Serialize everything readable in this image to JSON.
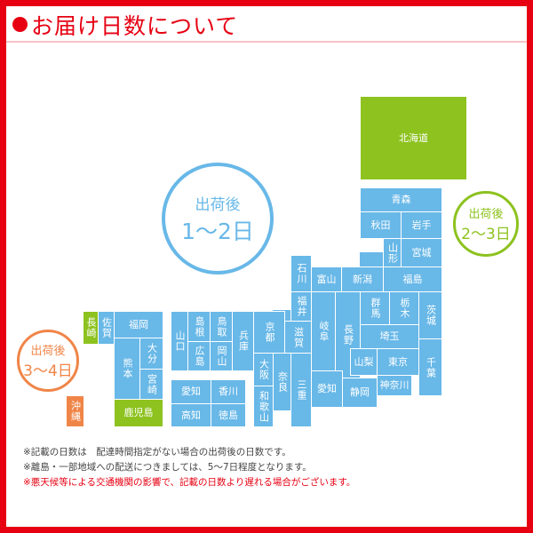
{
  "header": {
    "title": "お届け日数について",
    "bullet_icon": "red-dot"
  },
  "colors": {
    "frame": "#e60012",
    "zone_1_2": "#68b8e8",
    "zone_2_3": "#8dc21f",
    "zone_3_4": "#f08548"
  },
  "legend": {
    "zone_1_2": {
      "line1": "出荷後",
      "line2": "1〜2日"
    },
    "zone_2_3": {
      "line1": "出荷後",
      "line2": "2〜3日"
    },
    "zone_3_4": {
      "line1": "出荷後",
      "line2": "3〜4日"
    }
  },
  "prefectures": [
    {
      "name": "北海道",
      "zone": "2-3"
    },
    {
      "name": "青森",
      "zone": "1-2"
    },
    {
      "name": "秋田",
      "zone": "1-2"
    },
    {
      "name": "岩手",
      "zone": "1-2"
    },
    {
      "name": "山形",
      "zone": "1-2"
    },
    {
      "name": "宮城",
      "zone": "1-2"
    },
    {
      "name": "新潟",
      "zone": "1-2"
    },
    {
      "name": "福島",
      "zone": "1-2"
    },
    {
      "name": "石川",
      "zone": "1-2"
    },
    {
      "name": "富山",
      "zone": "1-2"
    },
    {
      "name": "福井",
      "zone": "1-2"
    },
    {
      "name": "岐阜",
      "zone": "1-2"
    },
    {
      "name": "長野",
      "zone": "1-2"
    },
    {
      "name": "群馬",
      "zone": "1-2"
    },
    {
      "name": "栃木",
      "zone": "1-2"
    },
    {
      "name": "茨城",
      "zone": "1-2"
    },
    {
      "name": "埼玉",
      "zone": "1-2"
    },
    {
      "name": "千葉",
      "zone": "1-2"
    },
    {
      "name": "山梨",
      "zone": "1-2"
    },
    {
      "name": "東京",
      "zone": "1-2"
    },
    {
      "name": "神奈川",
      "zone": "1-2"
    },
    {
      "name": "愛知",
      "zone": "1-2"
    },
    {
      "name": "静岡",
      "zone": "1-2"
    },
    {
      "name": "京都",
      "zone": "1-2"
    },
    {
      "name": "滋賀",
      "zone": "1-2"
    },
    {
      "name": "大阪",
      "zone": "1-2"
    },
    {
      "name": "奈良",
      "zone": "1-2"
    },
    {
      "name": "三重",
      "zone": "1-2"
    },
    {
      "name": "和歌山",
      "zone": "1-2"
    },
    {
      "name": "兵庫",
      "zone": "1-2"
    },
    {
      "name": "鳥取",
      "zone": "1-2"
    },
    {
      "name": "岡山",
      "zone": "1-2"
    },
    {
      "name": "島根",
      "zone": "1-2"
    },
    {
      "name": "広島",
      "zone": "1-2"
    },
    {
      "name": "山口",
      "zone": "1-2"
    },
    {
      "name": "愛知",
      "zone": "1-2"
    },
    {
      "name": "香川",
      "zone": "1-2"
    },
    {
      "name": "高知",
      "zone": "1-2"
    },
    {
      "name": "徳島",
      "zone": "1-2"
    },
    {
      "name": "長崎",
      "zone": "2-3"
    },
    {
      "name": "佐賀",
      "zone": "1-2"
    },
    {
      "name": "福岡",
      "zone": "1-2"
    },
    {
      "name": "熊本",
      "zone": "1-2"
    },
    {
      "name": "大分",
      "zone": "1-2"
    },
    {
      "name": "宮崎",
      "zone": "1-2"
    },
    {
      "name": "鹿児島",
      "zone": "2-3"
    },
    {
      "name": "沖縄",
      "zone": "3-4"
    }
  ],
  "notes": [
    "※記載の日数は　配達時間指定がない場合の出荷後の日数です。",
    "※離島・一部地域への配送につきましては、5〜7日程度となります。",
    "※悪天候等による交通機関の影響で、記載の日数より遅れる場合がございます。"
  ]
}
